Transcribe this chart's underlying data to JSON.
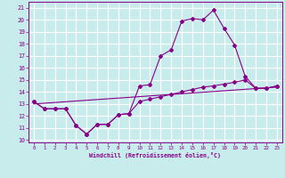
{
  "background_color": "#c8ecec",
  "grid_color": "#b0d8d8",
  "line_color": "#880088",
  "xlim": [
    -0.5,
    23.5
  ],
  "ylim": [
    9.8,
    21.5
  ],
  "xticks": [
    0,
    1,
    2,
    3,
    4,
    5,
    6,
    7,
    8,
    9,
    10,
    11,
    12,
    13,
    14,
    15,
    16,
    17,
    18,
    19,
    20,
    21,
    22,
    23
  ],
  "yticks": [
    10,
    11,
    12,
    13,
    14,
    15,
    16,
    17,
    18,
    19,
    20,
    21
  ],
  "xlabel": "Windchill (Refroidissement éolien,°C)",
  "line1_x": [
    0,
    1,
    2,
    3,
    4,
    5,
    6,
    7,
    8,
    9,
    10,
    11,
    12,
    13,
    14,
    15,
    16,
    17,
    18,
    19,
    20,
    21,
    22,
    23
  ],
  "line1_y": [
    13.2,
    12.6,
    12.6,
    12.6,
    11.2,
    10.5,
    11.3,
    11.3,
    12.1,
    12.2,
    14.5,
    14.6,
    17.0,
    17.5,
    19.9,
    20.1,
    20.0,
    20.8,
    19.3,
    17.9,
    15.3,
    14.3,
    14.3,
    14.5
  ],
  "line2_x": [
    0,
    1,
    2,
    3,
    4,
    5,
    6,
    7,
    8,
    9,
    10,
    11,
    12,
    13,
    14,
    15,
    16,
    17,
    18,
    19,
    20,
    21,
    22,
    23
  ],
  "line2_y": [
    13.2,
    12.6,
    12.6,
    12.6,
    11.2,
    10.5,
    11.3,
    11.3,
    12.1,
    12.2,
    13.2,
    13.4,
    13.6,
    13.8,
    14.0,
    14.2,
    14.4,
    14.5,
    14.65,
    14.8,
    15.0,
    14.3,
    14.3,
    14.5
  ],
  "line3_x": [
    0,
    23
  ],
  "line3_y": [
    13.0,
    14.4
  ]
}
